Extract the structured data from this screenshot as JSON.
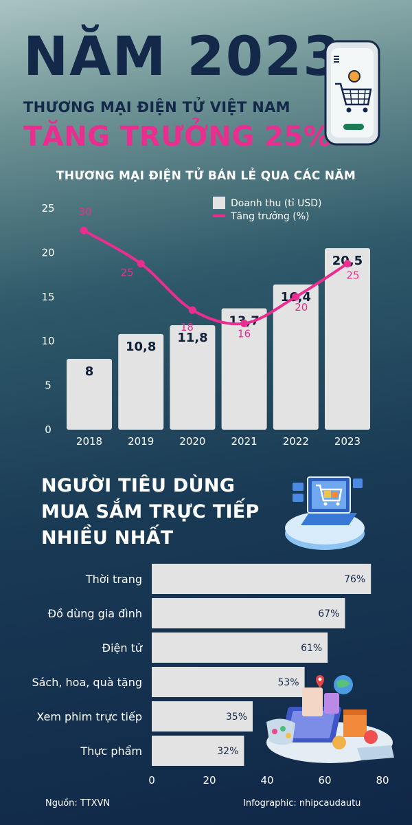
{
  "header": {
    "year_title": "NĂM 2023",
    "subtitle": "THƯƠNG MẠI ĐIỆN TỬ VIỆT NAM",
    "growth_title": "TĂNG TRƯỞNG 25%"
  },
  "chart_data": [
    {
      "type": "bar",
      "title": "THƯƠNG MẠI ĐIỆN TỬ BÁN LẺ QUA CÁC NĂM",
      "categories": [
        "2018",
        "2019",
        "2020",
        "2021",
        "2022",
        "2023"
      ],
      "ylim": [
        0,
        25
      ],
      "yticks": [
        0,
        5,
        10,
        15,
        20,
        25
      ],
      "legend_position": "top-right",
      "series": [
        {
          "name": "Doanh thu (tỉ USD)",
          "type": "bar",
          "values": [
            8,
            10.8,
            11.8,
            13.7,
            16.4,
            20.5
          ],
          "labels": [
            "8",
            "10,8",
            "11,8",
            "13,7",
            "16,4",
            "20,5"
          ],
          "color": "#e3e3e3"
        },
        {
          "name": "Tăng trưởng (%)",
          "type": "line",
          "values": [
            30,
            25,
            18,
            16,
            20,
            25
          ],
          "labels": [
            "30",
            "25",
            "18",
            "16",
            "20",
            "25"
          ],
          "color": "#ea2e8f"
        }
      ]
    },
    {
      "type": "bar",
      "orientation": "horizontal",
      "title": "NGƯỜI TIÊU DÙNG MUA SẮM TRỰC TIẾP NHIỀU NHẤT",
      "categories": [
        "Thời trang",
        "Đồ dùng gia đình",
        "Điện tử",
        "Sách, hoa, quà tặng",
        "Xem phim trực tiếp",
        "Thực phẩm"
      ],
      "values": [
        76,
        67,
        61,
        53,
        35,
        32
      ],
      "labels": [
        "76%",
        "67%",
        "61%",
        "53%",
        "35%",
        "32%"
      ],
      "xlim": [
        0,
        80
      ],
      "xticks": [
        0,
        20,
        40,
        60,
        80
      ],
      "color": "#e3e3e3"
    }
  ],
  "section2": {
    "title_line1": "NGƯỜI TIÊU DÙNG",
    "title_line2": "MUA SẮM TRỰC TIẾP",
    "title_line3": "NHIỀU NHẤT"
  },
  "footer": {
    "source": "Nguồn: TTXVN",
    "credit": "Infographic: nhipcaudautu"
  },
  "colors": {
    "accent": "#ea2e8f",
    "title_navy": "#14294a",
    "bar": "#e3e3e3"
  }
}
